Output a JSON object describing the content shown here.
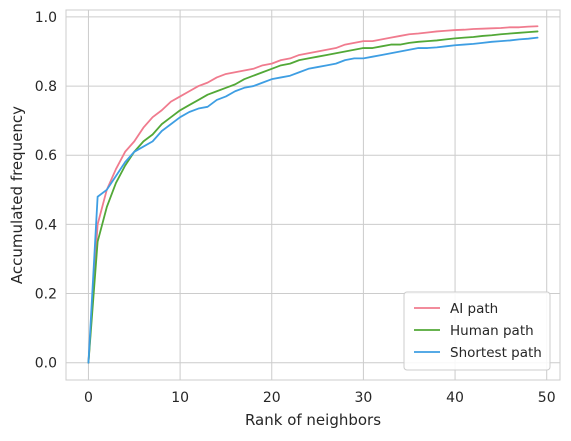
{
  "chart_data": {
    "type": "line",
    "title": "",
    "xlabel": "Rank of neighbors",
    "ylabel": "Accumulated frequency",
    "xlim": [
      -2.45,
      51.45
    ],
    "ylim": [
      -0.05,
      1.02
    ],
    "xticks": [
      0,
      10,
      20,
      30,
      40,
      50
    ],
    "yticks": [
      0.0,
      0.2,
      0.4,
      0.6,
      0.8,
      1.0
    ],
    "xtick_labels": [
      "0",
      "10",
      "20",
      "30",
      "40",
      "50"
    ],
    "ytick_labels": [
      "0.0",
      "0.2",
      "0.4",
      "0.6",
      "0.8",
      "1.0"
    ],
    "grid": true,
    "legend_position": "bottom-right",
    "x": [
      0,
      1,
      2,
      3,
      4,
      5,
      6,
      7,
      8,
      9,
      10,
      11,
      12,
      13,
      14,
      15,
      16,
      17,
      18,
      19,
      20,
      21,
      22,
      23,
      24,
      25,
      26,
      27,
      28,
      29,
      30,
      31,
      32,
      33,
      34,
      35,
      36,
      37,
      38,
      39,
      40,
      41,
      42,
      43,
      44,
      45,
      46,
      47,
      48,
      49
    ],
    "series": [
      {
        "name": "AI path",
        "color": "#f07b8e",
        "values": [
          0.0,
          0.4,
          0.5,
          0.56,
          0.61,
          0.64,
          0.68,
          0.71,
          0.73,
          0.755,
          0.77,
          0.785,
          0.8,
          0.81,
          0.825,
          0.835,
          0.84,
          0.845,
          0.85,
          0.86,
          0.865,
          0.875,
          0.88,
          0.89,
          0.895,
          0.9,
          0.905,
          0.91,
          0.92,
          0.925,
          0.93,
          0.93,
          0.935,
          0.94,
          0.945,
          0.95,
          0.952,
          0.955,
          0.958,
          0.96,
          0.962,
          0.963,
          0.965,
          0.966,
          0.967,
          0.968,
          0.97,
          0.97,
          0.972,
          0.973
        ]
      },
      {
        "name": "Human path",
        "color": "#52a837",
        "values": [
          0.0,
          0.35,
          0.45,
          0.52,
          0.57,
          0.61,
          0.64,
          0.66,
          0.69,
          0.71,
          0.73,
          0.745,
          0.76,
          0.775,
          0.785,
          0.795,
          0.805,
          0.82,
          0.83,
          0.84,
          0.85,
          0.86,
          0.865,
          0.875,
          0.88,
          0.885,
          0.89,
          0.895,
          0.9,
          0.905,
          0.91,
          0.91,
          0.915,
          0.92,
          0.92,
          0.925,
          0.928,
          0.93,
          0.932,
          0.935,
          0.938,
          0.94,
          0.942,
          0.945,
          0.947,
          0.95,
          0.952,
          0.954,
          0.956,
          0.958
        ]
      },
      {
        "name": "Shortest path",
        "color": "#3e9ee3",
        "values": [
          0.0,
          0.48,
          0.5,
          0.54,
          0.58,
          0.61,
          0.625,
          0.64,
          0.67,
          0.69,
          0.71,
          0.725,
          0.735,
          0.74,
          0.76,
          0.77,
          0.785,
          0.795,
          0.8,
          0.81,
          0.82,
          0.825,
          0.83,
          0.84,
          0.85,
          0.855,
          0.86,
          0.865,
          0.875,
          0.88,
          0.88,
          0.885,
          0.89,
          0.895,
          0.9,
          0.905,
          0.91,
          0.91,
          0.912,
          0.915,
          0.918,
          0.92,
          0.922,
          0.925,
          0.928,
          0.93,
          0.932,
          0.935,
          0.937,
          0.94
        ]
      }
    ],
    "legend": {
      "entries": [
        "AI path",
        "Human path",
        "Shortest path"
      ]
    }
  }
}
